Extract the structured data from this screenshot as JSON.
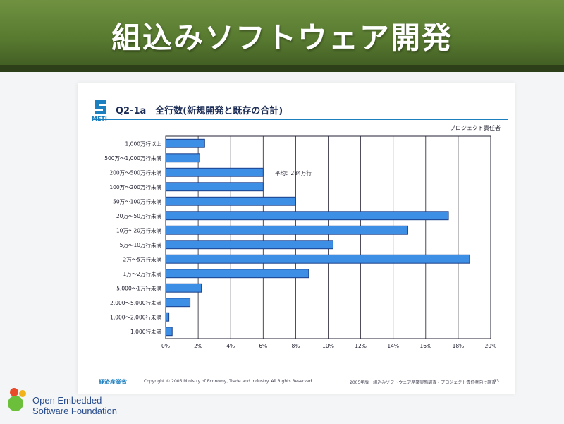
{
  "banner": {
    "title": "組込みソフトウェア開発"
  },
  "slide": {
    "logo_text": "METI",
    "question": "Q2-1a　全行数(新規開発と既存の合計)",
    "respondent": "プロジェクト責任者",
    "annotation": "平均：284万行",
    "footer_ministry": "経済産業省",
    "footer_copyright": "Copyright © 2005 Ministry of Economy, Trade and Industry. All Rights Reserved.",
    "footer_source": "2005年版　組込みソフトウェア産業実態調査 - プロジェクト責任者向け調査",
    "footer_page": "13"
  },
  "branding": {
    "line1": "Open Embedded",
    "line2": "Software Foundation"
  },
  "colors": {
    "bar": "#3d8fe6",
    "bar_border": "#1b3f8a",
    "banner": "#587a30",
    "meti_blue": "#1c7fc0"
  },
  "chart_data": {
    "type": "bar",
    "orientation": "horizontal",
    "categories": [
      "1,000万行以上",
      "500万～1,000万行未満",
      "200万～500万行未満",
      "100万～200万行未満",
      "50万～100万行未満",
      "20万～50万行未満",
      "10万～20万行未満",
      "5万～10万行未満",
      "2万～5万行未満",
      "1万～2万行未満",
      "5,000～1万行未満",
      "2,000～5,000行未満",
      "1,000～2,000行未満",
      "1,000行未満"
    ],
    "values": [
      2.4,
      2.1,
      6.0,
      6.0,
      8.0,
      17.4,
      14.9,
      10.3,
      18.7,
      8.8,
      2.2,
      1.5,
      0.2,
      0.4
    ],
    "x_ticks": [
      "0%",
      "2%",
      "4%",
      "6%",
      "8%",
      "10%",
      "12%",
      "14%",
      "16%",
      "18%",
      "20%"
    ],
    "xlim": [
      0,
      20
    ],
    "grid": true
  }
}
